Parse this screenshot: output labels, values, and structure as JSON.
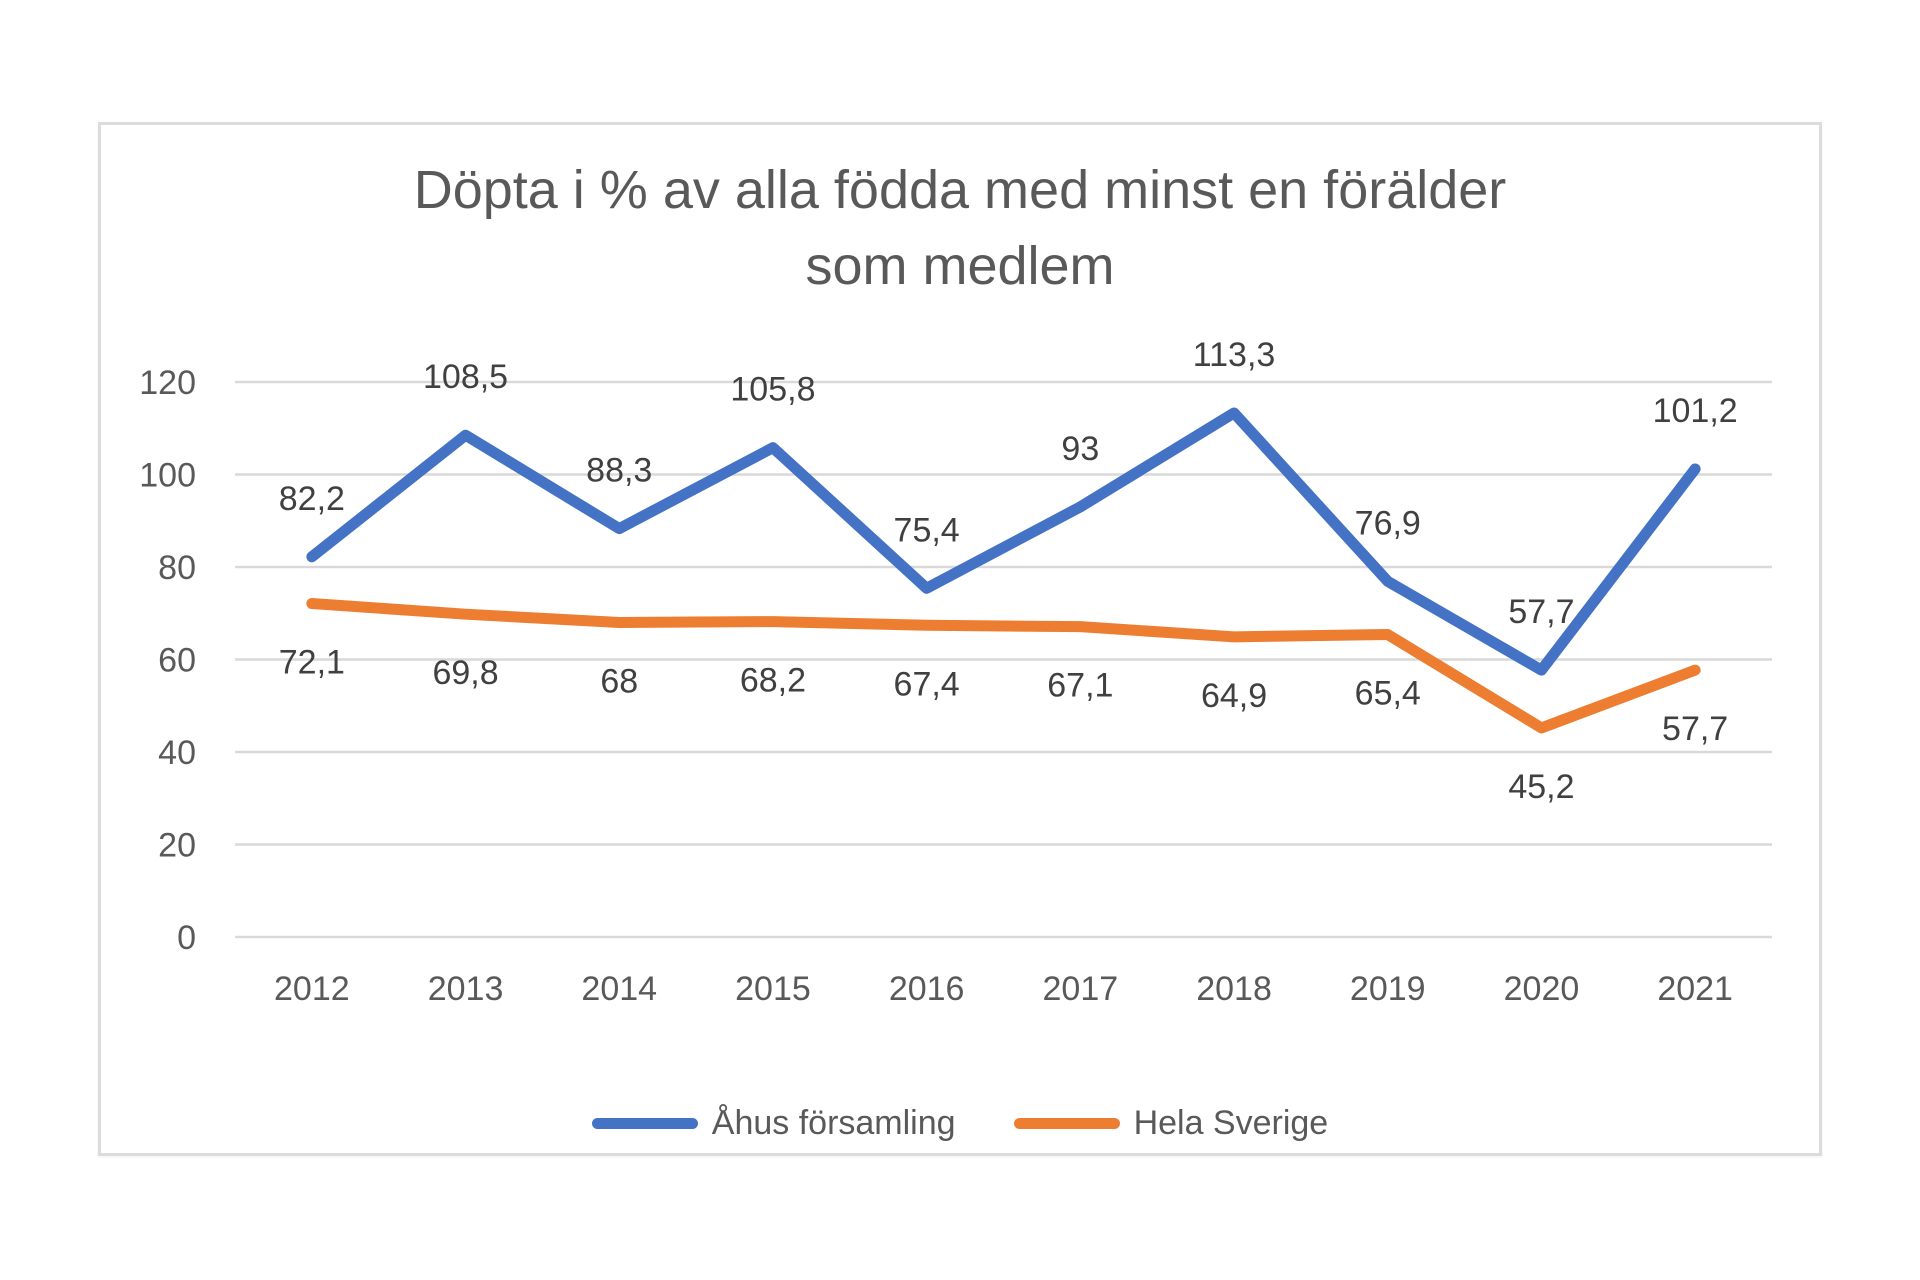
{
  "chart": {
    "title_line1": "Döpta i % av alla födda med minst en förälder",
    "title_line2": "som medlem"
  },
  "chart_data": {
    "type": "line",
    "title": "Döpta i % av alla födda med minst en förälder som medlem",
    "xlabel": "",
    "ylabel": "",
    "categories": [
      "2012",
      "2013",
      "2014",
      "2015",
      "2016",
      "2017",
      "2018",
      "2019",
      "2020",
      "2021"
    ],
    "series": [
      {
        "name": "Åhus församling",
        "color": "#4472C4",
        "values": [
          82.2,
          108.5,
          88.3,
          105.8,
          75.4,
          93,
          113.3,
          76.9,
          57.7,
          101.2
        ],
        "labels": [
          "82,2",
          "108,5",
          "88,3",
          "105,8",
          "75,4",
          "93",
          "113,3",
          "76,9",
          "57,7",
          "101,2"
        ],
        "label_position": "above"
      },
      {
        "name": "Hela Sverige",
        "color": "#ED7D31",
        "values": [
          72.1,
          69.8,
          68,
          68.2,
          67.4,
          67.1,
          64.9,
          65.4,
          45.2,
          57.7
        ],
        "labels": [
          "72,1",
          "69,8",
          "68",
          "68,2",
          "67,4",
          "67,1",
          "64,9",
          "65,4",
          "45,2",
          "57,7"
        ],
        "label_position": "below"
      }
    ],
    "y_ticks": [
      0,
      20,
      40,
      60,
      80,
      100,
      120
    ],
    "ylim": [
      0,
      120
    ],
    "grid": true,
    "legend_position": "bottom",
    "colors": {
      "grid_line": "#D9D9D9",
      "axis_text": "#595959",
      "data_label_text": "#404040"
    }
  }
}
